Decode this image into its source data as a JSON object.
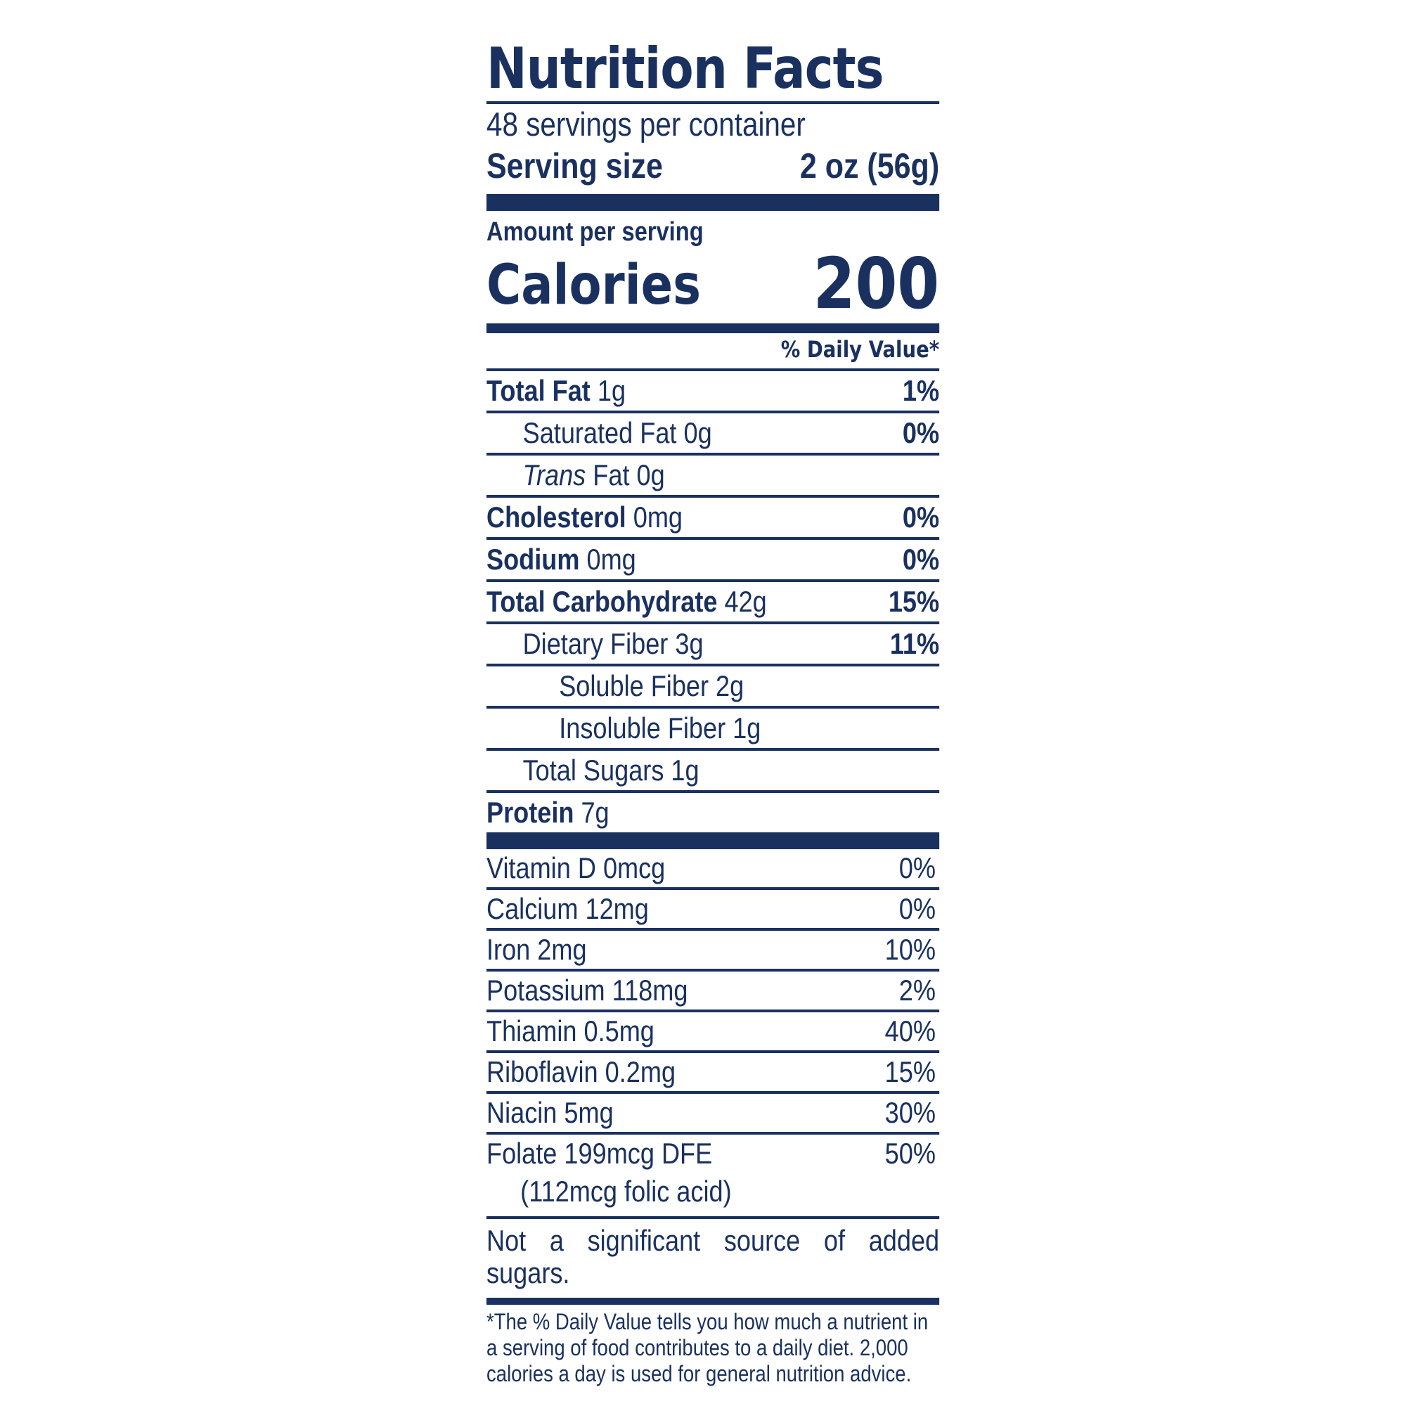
{
  "label": {
    "title": "Nutrition Facts",
    "servings_per_container": "48 servings per container",
    "serving_size_label": "Serving size",
    "serving_size_value": "2 oz (56g)",
    "amount_per_serving": "Amount per serving",
    "calories_label": "Calories",
    "calories_value": "200",
    "daily_value_header": "% Daily Value*",
    "nutrients": [
      {
        "name": "Total Fat",
        "amount": "1g",
        "pct": "1%"
      },
      {
        "name": "Saturated Fat",
        "amount": "0g",
        "pct": "0%"
      },
      {
        "name": "Trans",
        "name_rest": "Fat",
        "amount": "0g",
        "pct": ""
      },
      {
        "name": "Cholesterol",
        "amount": "0mg",
        "pct": "0%"
      },
      {
        "name": "Sodium",
        "amount": "0mg",
        "pct": "0%"
      },
      {
        "name": "Total Carbohydrate",
        "amount": "42g",
        "pct": "15%"
      },
      {
        "name": "Dietary Fiber",
        "amount": "3g",
        "pct": "11%"
      },
      {
        "name": "Soluble Fiber",
        "amount": "2g",
        "pct": ""
      },
      {
        "name": "Insoluble Fiber",
        "amount": "1g",
        "pct": ""
      },
      {
        "name": "Total Sugars",
        "amount": "1g",
        "pct": ""
      },
      {
        "name": "Protein",
        "amount": "7g",
        "pct": ""
      }
    ],
    "vitamins": [
      {
        "name": "Vitamin D 0mcg",
        "pct": "0%"
      },
      {
        "name": "Calcium 12mg",
        "pct": "0%"
      },
      {
        "name": "Iron 2mg",
        "pct": "10%"
      },
      {
        "name": "Potassium 118mg",
        "pct": "2%"
      },
      {
        "name": "Thiamin 0.5mg",
        "pct": "40%"
      },
      {
        "name": "Riboflavin 0.2mg",
        "pct": "15%"
      },
      {
        "name": "Niacin 5mg",
        "pct": "30%"
      },
      {
        "name": "Folate 199mcg DFE",
        "pct": "50%"
      }
    ],
    "folate_note": "(112mcg folic acid)",
    "added_sugars_note": "Not a significant source of added sugars.",
    "footnote": "*The % Daily Value tells you how much a nutrient in a serving of food contributes to a daily diet. 2,000 calories a day is used for general nutrition advice."
  },
  "colors": {
    "ink": "#1a3160",
    "background": "#ffffff"
  }
}
